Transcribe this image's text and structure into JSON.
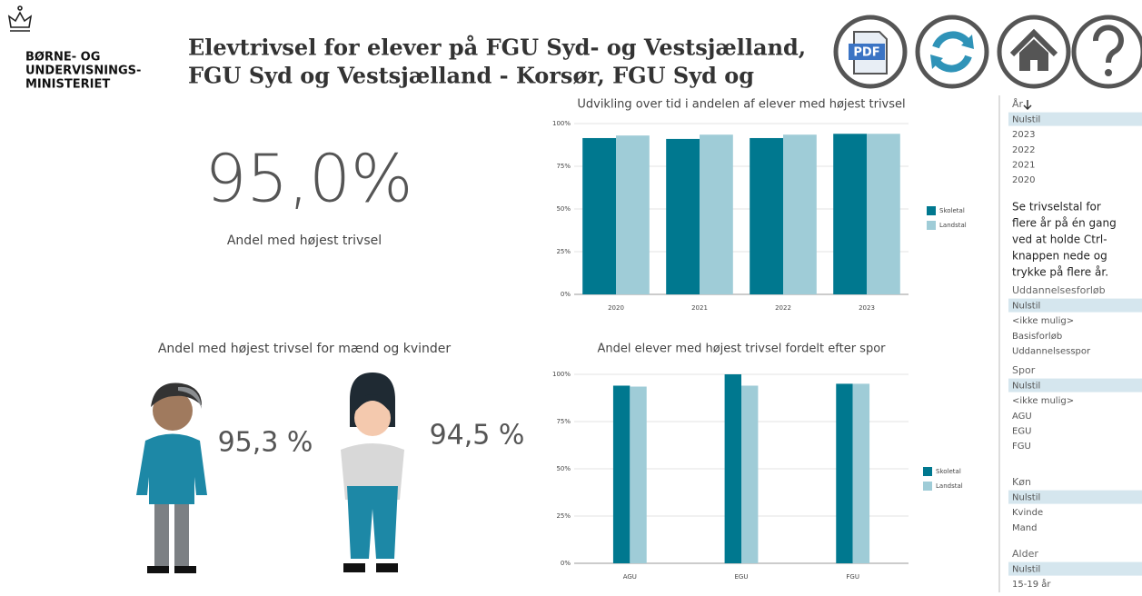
{
  "header": {
    "logo_lines": [
      "BØRNE- OG",
      "UNDERVISNINGS-",
      "MINISTERIET"
    ],
    "title_lines": [
      "Elevtrivsel for elever på FGU Syd- og Vestsjælland,",
      "FGU Syd og Vestsjælland - Korsør, FGU Syd og"
    ],
    "pdf_label": "PDF"
  },
  "kpi": {
    "value": "95,0%",
    "label": "Andel med højest trivsel"
  },
  "gender": {
    "title": "Andel med højest trivsel for mænd og kvinder",
    "male_value": "95,3 %",
    "female_value": "94,5 %"
  },
  "chart_data": [
    {
      "type": "bar",
      "title": "Udvikling over tid i andelen af elever med højest trivsel",
      "categories": [
        "2020",
        "2021",
        "2022",
        "2023"
      ],
      "series": [
        {
          "name": "Skoletal",
          "color": "#00788f",
          "values": [
            91.5,
            91,
            91.5,
            94
          ]
        },
        {
          "name": "Landstal",
          "color": "#9fccd7",
          "values": [
            93,
            93.5,
            93.5,
            94
          ]
        }
      ],
      "ylim": [
        0,
        100
      ],
      "yticks": [
        {
          "value": 0,
          "label": "0%"
        },
        {
          "value": 25,
          "label": "25%"
        },
        {
          "value": 50,
          "label": "50%"
        },
        {
          "value": 75,
          "label": "75%"
        },
        {
          "value": 100,
          "label": "100%"
        }
      ],
      "grid": true,
      "legend": "right"
    },
    {
      "type": "bar",
      "title": "Andel elever med højest trivsel fordelt efter spor",
      "categories": [
        "AGU",
        "EGU",
        "FGU"
      ],
      "series": [
        {
          "name": "Skoletal",
          "color": "#00788f",
          "values": [
            94,
            100,
            95
          ]
        },
        {
          "name": "Landstal",
          "color": "#9fccd7",
          "values": [
            93.5,
            94,
            95
          ]
        }
      ],
      "ylim": [
        0,
        100
      ],
      "yticks": [
        {
          "value": 0,
          "label": "0%"
        },
        {
          "value": 25,
          "label": "25%"
        },
        {
          "value": 50,
          "label": "50%"
        },
        {
          "value": 75,
          "label": "75%"
        },
        {
          "value": 100,
          "label": "100%"
        }
      ],
      "grid": true,
      "legend": "right"
    }
  ],
  "slicers": [
    {
      "title": "År",
      "items": [
        "Nulstil",
        "2023",
        "2022",
        "2021",
        "2020"
      ]
    },
    {
      "title": "Uddannelsesforløb",
      "items": [
        "Nulstil",
        "<ikke mulig>",
        "Basisforløb",
        "Uddannelsesspor"
      ]
    },
    {
      "title": "Spor",
      "items": [
        "Nulstil",
        "<ikke mulig>",
        "AGU",
        "EGU",
        "FGU"
      ]
    },
    {
      "title": "Køn",
      "items": [
        "Nulstil",
        "Kvinde",
        "Mand"
      ]
    },
    {
      "title": "Alder",
      "items": [
        "Nulstil",
        "15-19 år"
      ]
    }
  ],
  "help_lines": [
    "Se trivselstal for",
    "flere år på én gang",
    "ved at holde Ctrl-",
    "knappen nede og",
    "trykke på flere år."
  ]
}
